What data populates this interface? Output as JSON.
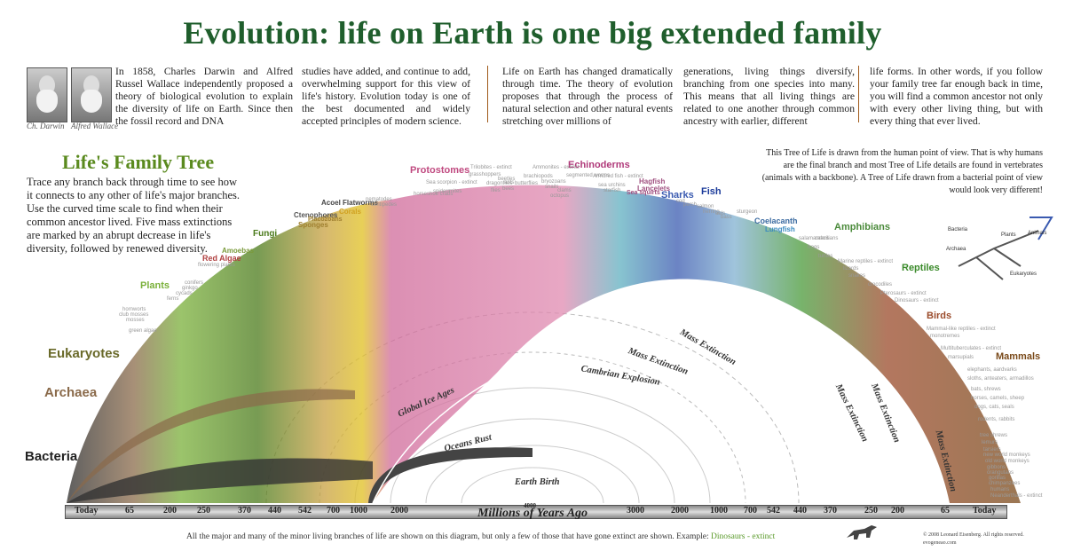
{
  "title": "Evolution: life on Earth is one big extended family",
  "signatures": {
    "darwin": "Ch. Darwin",
    "wallace": "Alfred Wallace"
  },
  "intro": [
    "In 1858, Charles Darwin and Alfred Russel Wallace independently proposed a theory of biological evolution to explain the diversity of life on Earth. Since then the fossil record and DNA",
    "studies have added, and continue to add, overwhelming support for this view of life's history. Evolution today is one of the best documented and widely accepted principles of modern science.",
    "Life on Earth has changed dramatically through time. The theory of evolution proposes that through the process of natural selection and other natural events stretching over millions of",
    "generations, living things diversify, branching from one species into many. This means that all living things are related to one another through common ancestry with earlier, different",
    "life forms. In other words, if you follow your family tree far enough back in time, you will find a common ancestor not only with every other living thing, but with every thing that ever lived."
  ],
  "left_heading": "Life's Family Tree",
  "left_body": "Trace any branch back through time to see how it connects to any other of life's major branches. Use the curved time scale to find when their common ancestor lived. Five mass extinctions are marked by an abrupt decrease in life's diversity, followed by renewed diversity.",
  "right_note": "This Tree of Life is drawn from the human point of view. That is why humans are the final branch and most Tree of Life details are found in vertebrates (animals with a backbone). A Tree of Life drawn from a bacterial point of view would look very different!",
  "inset_labels": {
    "bacteria": "Bacteria",
    "archaea": "Archaea",
    "plants": "Plants",
    "animals": "Animals",
    "eukaryotes": "Eukaryotes"
  },
  "groups": {
    "bacteria": "Bacteria",
    "archaea": "Archaea",
    "eukaryotes": "Eukaryotes",
    "plants": "Plants",
    "red_algae": "Red Algae",
    "amoebas": "Amoebas",
    "fungi": "Fungi",
    "sponges": "Sponges",
    "ctenophores": "Ctenophores",
    "placozoans": "Placozoans",
    "corals": "Corals",
    "acoel": "Acoel Flatworms",
    "protostomes": "Protostomes",
    "echinoderms": "Echinoderms",
    "hagfish": "Hagfish",
    "lancelets": "Lancelets",
    "sea_squirts": "Sea squirts",
    "sharks": "Sharks",
    "fish": "Fish",
    "coelacanth": "Coelacanth",
    "lungfish": "Lungfish",
    "amphibians": "Amphibians",
    "reptiles": "Reptiles",
    "birds": "Birds",
    "mammals": "Mammals"
  },
  "minor": {
    "green_algae": "green algae",
    "hornworts": "hornworts",
    "club_mosses": "club mosses",
    "mosses": "mosses",
    "ferns": "ferns",
    "cycads": "cycads",
    "ginkgo": "ginkgo",
    "conifers": "conifers",
    "flowering": "flowering plants",
    "nematodes": "nematodes",
    "centipedes": "centipedes",
    "horseshoe": "horseshoe crabs",
    "spiders": "spiders",
    "mites": "mites",
    "trilobites": "Trilobites - extinct",
    "sea_scorpion": "Sea scorpion - extinct",
    "grasshoppers": "grasshoppers",
    "beetles": "beetles",
    "dragonflies": "dragonflies",
    "flies": "flies",
    "bees": "bees",
    "ants": "ants",
    "butterflies": "butterflies",
    "brachiopods": "brachiopods",
    "ammonites": "Ammonites - extinct",
    "bryozoans": "bryozoans",
    "snails": "snails",
    "clams": "clams",
    "octopus": "octopus",
    "segmented": "segmented worms",
    "armored": "Armored fish - extinct",
    "sea_urchins": "sea urchins",
    "starfish": "starfish",
    "cod": "cod",
    "perch": "perch",
    "salmon": "salmon",
    "herring": "herring",
    "eels": "eels",
    "bass": "bass",
    "sturgeon": "sturgeon",
    "salamanders": "salamanders",
    "frogs": "frogs",
    "caecilians": "caecilians",
    "turtles": "turtles",
    "marine_reptiles": "Marine reptiles - extinct",
    "lizards": "lizards",
    "snakes": "snakes",
    "crocodiles": "crocodiles",
    "pterosaurs": "Pterosaurs - extinct",
    "dinosaurs": "Dinosaurs - extinct",
    "mammal_like": "Mammal-like reptiles - extinct",
    "monotremes": "monotremes",
    "multituberculates": "Multituberculates - extinct",
    "marsupials": "marsupials",
    "elephants": "elephants, aardvarks",
    "sloths": "sloths, anteaters, armadillos",
    "bats": "bats, shrews",
    "horses": "horses, camels, sheep",
    "dogs": "dogs, cats, seals",
    "rodents": "rodents, rabbits",
    "tree_shrews": "tree shrews",
    "lemurs": "lemurs",
    "tarsiers": "tarsiers",
    "new_world": "new world monkeys",
    "old_world": "old world monkeys",
    "gibbons": "gibbons",
    "orangutans": "orangutans",
    "gorillas": "gorillas",
    "chimpanzees": "chimpanzees",
    "humans": "humans",
    "neanderthals": "Neanderthals - extinct"
  },
  "events": {
    "earth_birth": "Earth Birth",
    "oceans_rust": "Oceans Rust",
    "ice_ages": "Global Ice Ages",
    "cambrian": "Cambrian Explosion",
    "mass_extinction": "Mass Extinction"
  },
  "time_ticks_left": [
    "Today",
    "65",
    "200",
    "250",
    "370",
    "440",
    "542",
    "700",
    "1000",
    "2000"
  ],
  "time_ticks_right": [
    "3000",
    "2000",
    "1000",
    "700",
    "542",
    "440",
    "370",
    "250",
    "200",
    "65",
    "Today"
  ],
  "time_center": "4000",
  "axis_title": "Millions of Years Ago",
  "footer": {
    "text": "All the major and many of the minor living branches of life are shown on this diagram, but only a few of those that have gone extinct are shown. Example:",
    "example": "Dinosaurs - extinct"
  },
  "copyright": [
    "© 2008 Leonard Eisenberg. All rights reserved.",
    "evogeneao.com"
  ],
  "colors": {
    "title": "#1f5e2c",
    "bacteria": "#222222",
    "archaea": "#8a6a4a",
    "eukaryotes": "#6a6a2a",
    "plants": "#7ab03a",
    "fungi": "#4a7a1a",
    "corals": "#e0c020",
    "protostomes": "#d06a9a",
    "echinoderms": "#b03a7a",
    "sharks": "#3a5ab0",
    "fish": "#1a3a9a",
    "amphibians": "#4a8a3a",
    "reptiles": "#3a8a2a",
    "birds": "#9a4a2a",
    "mammals": "#7a4a1a"
  }
}
